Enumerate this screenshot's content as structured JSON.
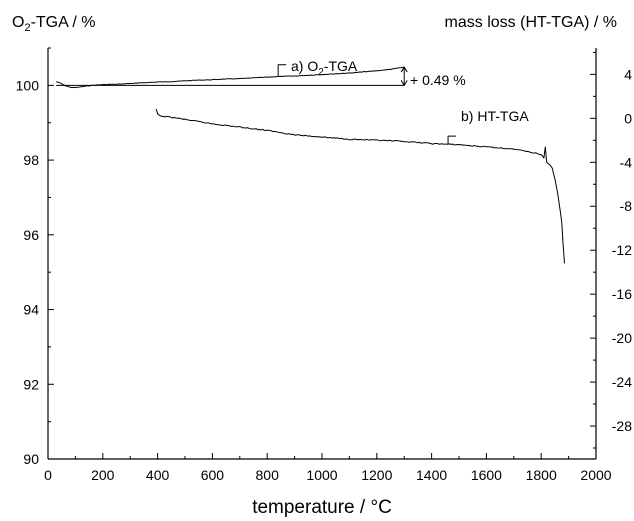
{
  "chart_data": {
    "type": "line",
    "title": "",
    "xlabel": "temperature / °C",
    "ylabel_left": "O",
    "ylabel_left_sub": "2",
    "ylabel_left_rest": "-TGA / %",
    "ylabel_right": "mass loss (HT-TGA) / %",
    "xlim": [
      0,
      2000
    ],
    "ylim_left": [
      90,
      101
    ],
    "ylim_right": [
      -31,
      6.4
    ],
    "x_ticks": [
      "0",
      "200",
      "400",
      "600",
      "800",
      "1000",
      "1200",
      "1400",
      "1600",
      "1800",
      "2000"
    ],
    "y_left_ticks": [
      "90",
      "92",
      "94",
      "96",
      "98",
      "100"
    ],
    "y_right_ticks": [
      "4",
      "0",
      "-4",
      "-8",
      "-12",
      "-16",
      "-20",
      "-24",
      "-28"
    ],
    "grid": false,
    "series": [
      {
        "label_prefix": "a) O",
        "label_sub": "2",
        "label_suffix": "-TGA",
        "axis": "left",
        "x": [
          30,
          45,
          60,
          80,
          100,
          130,
          160,
          200,
          250,
          300,
          350,
          400,
          450,
          500,
          550,
          600,
          650,
          700,
          750,
          800,
          850,
          900,
          950,
          1000,
          1050,
          1100,
          1150,
          1200,
          1250,
          1300
        ],
        "y": [
          100.1,
          100.06,
          100.0,
          99.95,
          99.94,
          99.97,
          100.0,
          100.02,
          100.03,
          100.05,
          100.07,
          100.09,
          100.1,
          100.12,
          100.14,
          100.15,
          100.17,
          100.18,
          100.2,
          100.22,
          100.24,
          100.25,
          100.27,
          100.29,
          100.31,
          100.33,
          100.36,
          100.39,
          100.43,
          100.49
        ]
      },
      {
        "label_prefix": "b) HT-TGA",
        "axis": "right",
        "x": [
          395,
          400,
          405,
          410,
          450,
          500,
          600,
          700,
          800,
          900,
          1000,
          1100,
          1200,
          1300,
          1400,
          1500,
          1600,
          1700,
          1750,
          1800,
          1810,
          1815,
          1820,
          1830,
          1840,
          1850,
          1860,
          1870,
          1875,
          1880,
          1885
        ],
        "y": [
          0.8,
          0.4,
          0.3,
          0.2,
          0.1,
          -0.1,
          -0.5,
          -0.8,
          -1.1,
          -1.5,
          -1.7,
          -1.9,
          -2.0,
          -2.1,
          -2.3,
          -2.4,
          -2.6,
          -2.8,
          -3.0,
          -3.3,
          -3.6,
          -2.6,
          -4.0,
          -4.2,
          -4.5,
          -5.5,
          -6.8,
          -8.5,
          -9.5,
          -11.5,
          -13.2
        ]
      }
    ],
    "annotations": [
      {
        "text": "+ 0.49 %"
      }
    ]
  }
}
